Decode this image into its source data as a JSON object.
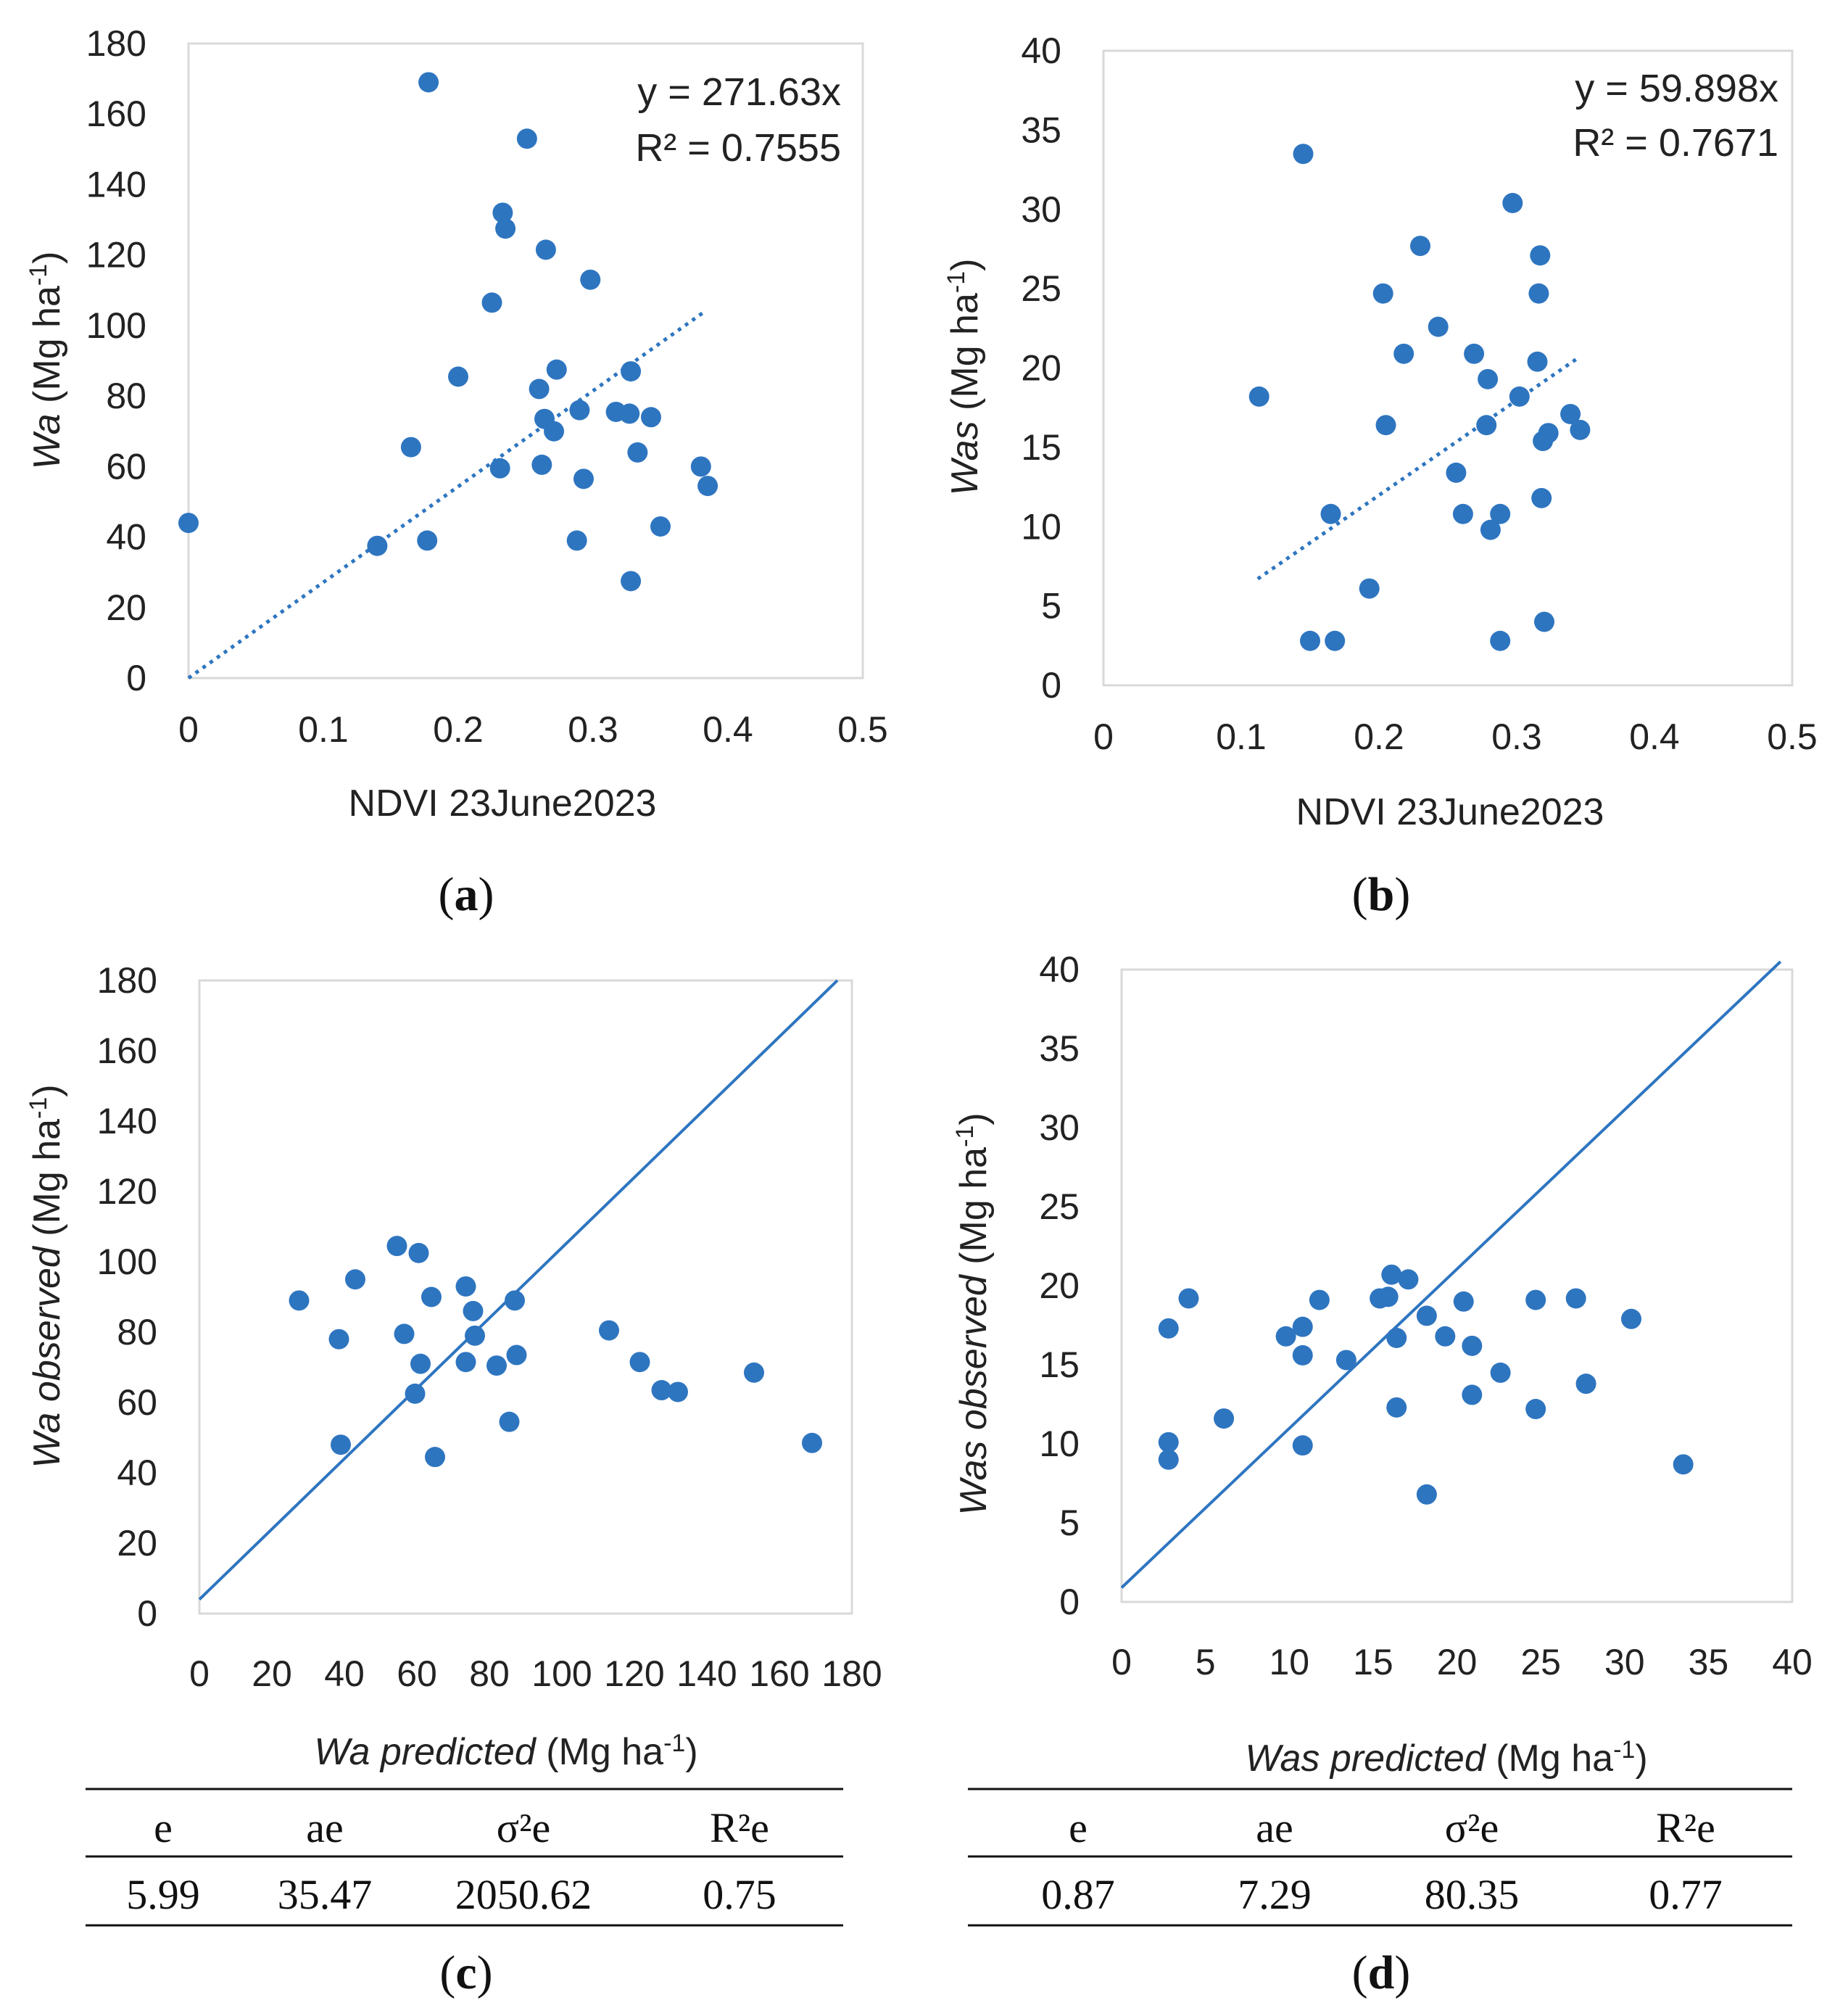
{
  "colors": {
    "series": "#2E75C0",
    "grid": "#D9D9D9",
    "text": "#222222"
  },
  "chart_data": [
    {
      "id": "a",
      "type": "scatter",
      "panel_label": "a",
      "xlabel": "NDVI 23June2023",
      "ylabel": {
        "italic": "Wa",
        "rest": " (Mg ha",
        "sup": "-1",
        "close": ")"
      },
      "xlim": [
        0,
        0.5
      ],
      "ylim": [
        0,
        180
      ],
      "xticks": [
        0,
        0.1,
        0.2,
        0.3,
        0.4,
        0.5
      ],
      "yticks": [
        0,
        20,
        40,
        60,
        80,
        100,
        120,
        140,
        160,
        180
      ],
      "trendline": {
        "style": "dotted",
        "slope": 271.63,
        "x_range": [
          0,
          0.383
        ]
      },
      "equation": "y = 271.63x",
      "r2_label": "R² = 0.7555",
      "points": [
        [
          0.0,
          44
        ],
        [
          0.14,
          37.5
        ],
        [
          0.165,
          65.5
        ],
        [
          0.177,
          39
        ],
        [
          0.178,
          169
        ],
        [
          0.2,
          85.5
        ],
        [
          0.225,
          106.5
        ],
        [
          0.231,
          59.5
        ],
        [
          0.233,
          132
        ],
        [
          0.235,
          127.5
        ],
        [
          0.251,
          153
        ],
        [
          0.26,
          82
        ],
        [
          0.262,
          60.5
        ],
        [
          0.264,
          73.5
        ],
        [
          0.265,
          121.5
        ],
        [
          0.271,
          70
        ],
        [
          0.273,
          87.5
        ],
        [
          0.288,
          39
        ],
        [
          0.29,
          76
        ],
        [
          0.293,
          56.5
        ],
        [
          0.298,
          113
        ],
        [
          0.317,
          75.5
        ],
        [
          0.327,
          75
        ],
        [
          0.328,
          87
        ],
        [
          0.328,
          27.5
        ],
        [
          0.333,
          64
        ],
        [
          0.343,
          74
        ],
        [
          0.35,
          43
        ],
        [
          0.38,
          60
        ],
        [
          0.385,
          54.5
        ]
      ]
    },
    {
      "id": "b",
      "type": "scatter",
      "panel_label": "b",
      "xlabel": "NDVI 23June2023",
      "ylabel": {
        "italic": "Was",
        "rest": " (Mg ha",
        "sup": "-1",
        "close": ")"
      },
      "xlim": [
        0,
        0.5
      ],
      "ylim": [
        0,
        40
      ],
      "xticks": [
        0,
        0.1,
        0.2,
        0.3,
        0.4,
        0.5
      ],
      "yticks": [
        0,
        5,
        10,
        15,
        20,
        25,
        30,
        35,
        40
      ],
      "trendline": {
        "style": "dotted",
        "slope": 59.898,
        "x_range": [
          0.112,
          0.343
        ]
      },
      "equation": "y = 59.898x",
      "r2_label": "R² = 0.7671",
      "points": [
        [
          0.113,
          18.2
        ],
        [
          0.145,
          33.5
        ],
        [
          0.15,
          2.8
        ],
        [
          0.165,
          10.8
        ],
        [
          0.168,
          2.8
        ],
        [
          0.193,
          6.1
        ],
        [
          0.203,
          24.7
        ],
        [
          0.205,
          16.4
        ],
        [
          0.218,
          20.9
        ],
        [
          0.23,
          27.7
        ],
        [
          0.243,
          22.6
        ],
        [
          0.256,
          13.4
        ],
        [
          0.261,
          10.8
        ],
        [
          0.269,
          20.9
        ],
        [
          0.278,
          16.4
        ],
        [
          0.279,
          19.3
        ],
        [
          0.281,
          9.8
        ],
        [
          0.288,
          10.8
        ],
        [
          0.288,
          2.8
        ],
        [
          0.297,
          30.4
        ],
        [
          0.302,
          18.2
        ],
        [
          0.315,
          20.4
        ],
        [
          0.316,
          24.7
        ],
        [
          0.317,
          27.1
        ],
        [
          0.318,
          11.8
        ],
        [
          0.319,
          15.4
        ],
        [
          0.32,
          4.0
        ],
        [
          0.323,
          15.9
        ],
        [
          0.339,
          17.1
        ],
        [
          0.346,
          16.1
        ]
      ]
    },
    {
      "id": "c",
      "type": "scatter",
      "panel_label": "c",
      "xlabel": {
        "italic": "Wa predicted",
        "rest": " (Mg ha",
        "sup": "-1",
        "close": ")"
      },
      "ylabel": {
        "italic": "Wa observed",
        "rest": " (Mg ha",
        "sup": "-1",
        "close": ")"
      },
      "xlim": [
        0,
        180
      ],
      "ylim": [
        0,
        180
      ],
      "xticks": [
        0,
        20,
        40,
        60,
        80,
        100,
        120,
        140,
        160,
        180
      ],
      "yticks": [
        0,
        20,
        40,
        60,
        80,
        100,
        120,
        140,
        160,
        180
      ],
      "reference_line": {
        "style": "solid",
        "from": [
          0,
          4
        ],
        "to": [
          176,
          180
        ]
      },
      "points": [
        [
          27.5,
          89
        ],
        [
          38.5,
          78
        ],
        [
          39,
          48
        ],
        [
          43,
          95
        ],
        [
          54.5,
          104.5
        ],
        [
          56.5,
          79.5
        ],
        [
          59.5,
          62.5
        ],
        [
          60.5,
          102.5
        ],
        [
          61,
          71
        ],
        [
          64,
          90
        ],
        [
          65,
          44.5
        ],
        [
          73.5,
          71.5
        ],
        [
          73.5,
          93
        ],
        [
          75.5,
          86
        ],
        [
          76,
          79
        ],
        [
          82,
          70.5
        ],
        [
          85.5,
          54.5
        ],
        [
          87,
          89
        ],
        [
          87.5,
          73.5
        ],
        [
          113,
          80.5
        ],
        [
          121.5,
          71.5
        ],
        [
          127.5,
          63.5
        ],
        [
          132,
          63
        ],
        [
          153,
          68.5
        ],
        [
          169,
          48.5
        ]
      ],
      "stats_table": {
        "headers": [
          "e",
          "ae",
          "σ²e",
          "R²e"
        ],
        "values": [
          "5.99",
          "35.47",
          "2050.62",
          "0.75"
        ]
      }
    },
    {
      "id": "d",
      "type": "scatter",
      "panel_label": "d",
      "xlabel": {
        "italic": "Was predicted",
        "rest": " (Mg ha",
        "sup": "-1",
        "close": ")"
      },
      "ylabel": {
        "italic": "Was observed",
        "rest": " (Mg ha",
        "sup": "-1",
        "close": ")"
      },
      "xlim": [
        0,
        40
      ],
      "ylim": [
        0,
        40
      ],
      "xticks": [
        0,
        5,
        10,
        15,
        20,
        25,
        30,
        35,
        40
      ],
      "yticks": [
        0,
        5,
        10,
        15,
        20,
        25,
        30,
        35,
        40
      ],
      "reference_line": {
        "style": "solid",
        "from": [
          0,
          0.9
        ],
        "to": [
          39.3,
          40.5
        ]
      },
      "points": [
        [
          2.8,
          17.3
        ],
        [
          2.8,
          10.1
        ],
        [
          2.8,
          9.0
        ],
        [
          4.0,
          19.2
        ],
        [
          6.1,
          11.6
        ],
        [
          9.8,
          16.8
        ],
        [
          10.8,
          17.4
        ],
        [
          10.8,
          15.6
        ],
        [
          10.8,
          9.9
        ],
        [
          11.8,
          19.1
        ],
        [
          13.4,
          15.3
        ],
        [
          15.4,
          19.2
        ],
        [
          15.9,
          19.3
        ],
        [
          16.1,
          20.7
        ],
        [
          16.4,
          16.7
        ],
        [
          16.4,
          12.3
        ],
        [
          17.1,
          20.4
        ],
        [
          18.2,
          18.1
        ],
        [
          18.2,
          6.8
        ],
        [
          19.3,
          16.8
        ],
        [
          20.4,
          19.0
        ],
        [
          20.9,
          16.2
        ],
        [
          20.9,
          13.1
        ],
        [
          22.6,
          14.5
        ],
        [
          24.7,
          19.1
        ],
        [
          24.7,
          12.2
        ],
        [
          27.1,
          19.2
        ],
        [
          27.7,
          13.8
        ],
        [
          30.4,
          17.9
        ],
        [
          33.5,
          8.7
        ]
      ],
      "stats_table": {
        "headers": [
          "e",
          "ae",
          "σ²e",
          "R²e"
        ],
        "values": [
          "0.87",
          "7.29",
          "80.35",
          "0.77"
        ]
      }
    }
  ]
}
